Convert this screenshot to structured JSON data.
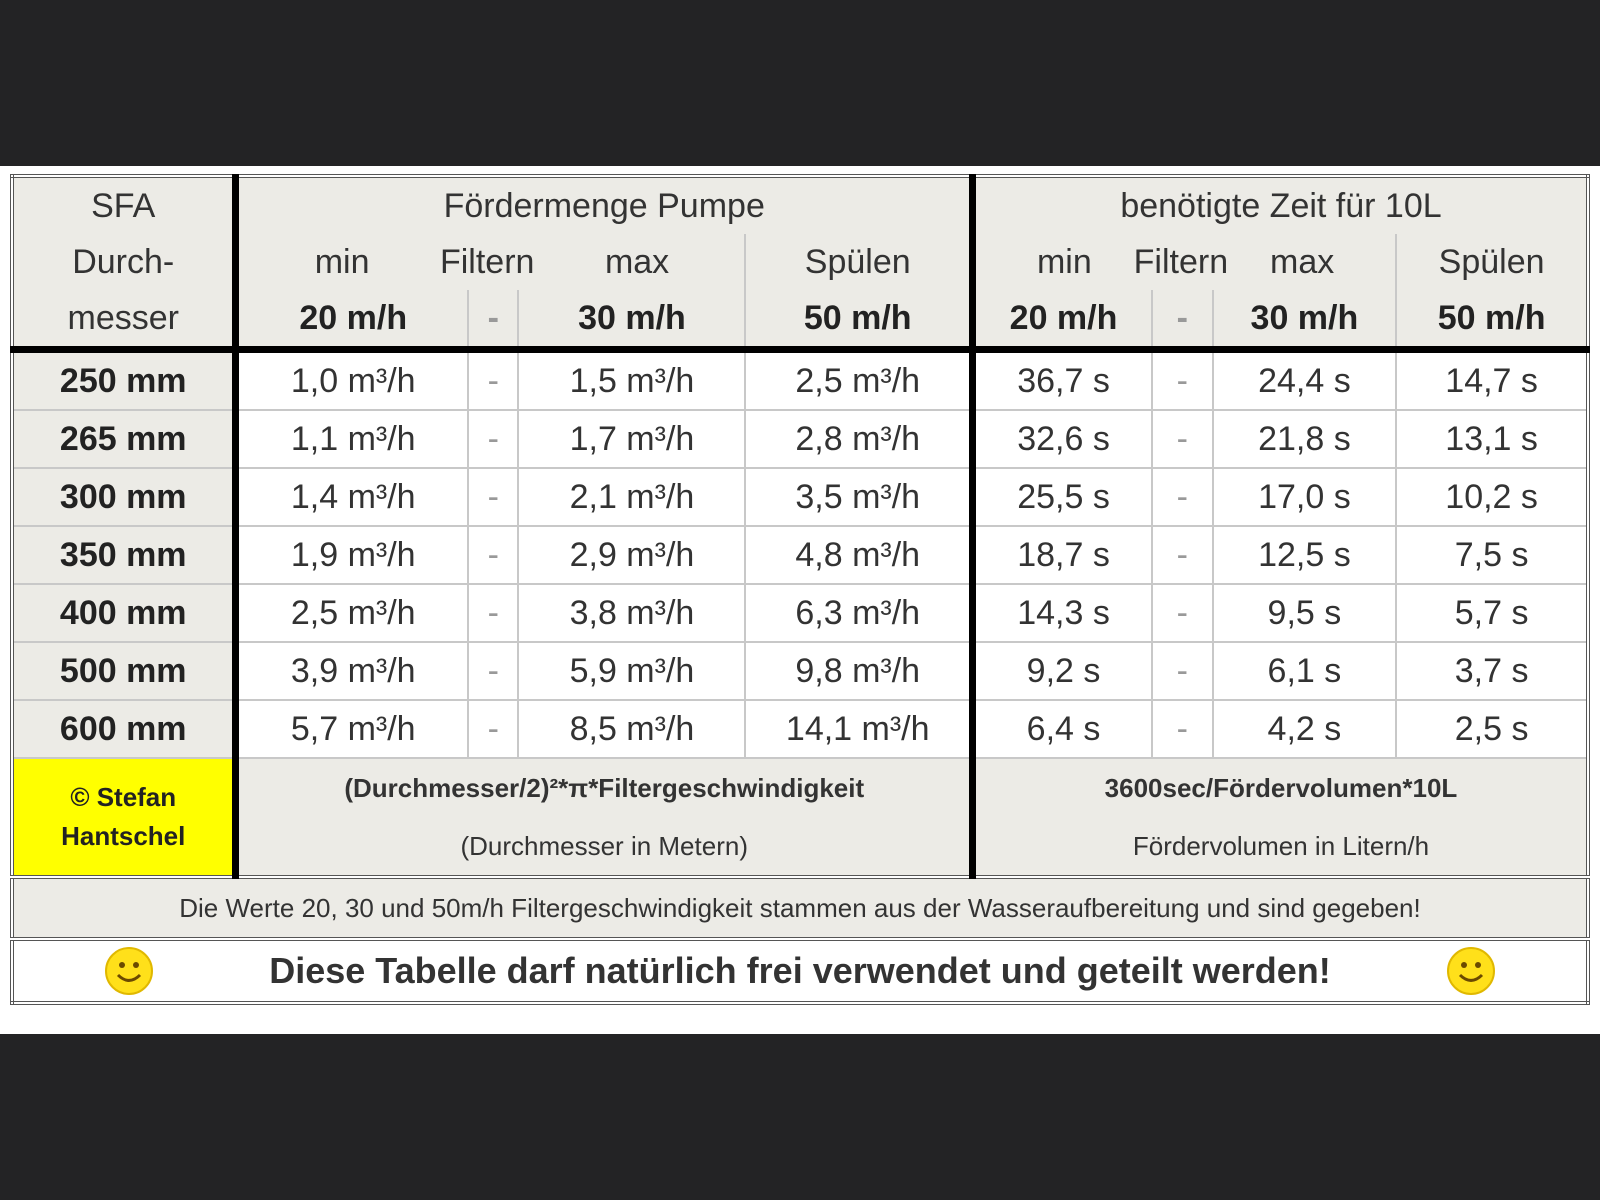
{
  "header": {
    "first_col": [
      "SFA",
      "Durch-",
      "messer"
    ],
    "group_left": "Fördermenge Pumpe",
    "group_right": "benötigte Zeit für 10L",
    "left_sub": [
      "min",
      "Filtern",
      "max"
    ],
    "left_flush": "Spülen",
    "right_sub": [
      "min",
      "Filtern",
      "max"
    ],
    "right_flush": "Spülen",
    "units": [
      "20 m/h",
      "-",
      "30 m/h",
      "50 m/h",
      "20 m/h",
      "-",
      "30 m/h",
      "50 m/h"
    ]
  },
  "table": {
    "rows": [
      [
        "250 mm",
        "1,0 m³/h",
        "-",
        "1,5 m³/h",
        "2,5 m³/h",
        "36,7 s",
        "-",
        "24,4 s",
        "14,7 s"
      ],
      [
        "265 mm",
        "1,1 m³/h",
        "-",
        "1,7 m³/h",
        "2,8 m³/h",
        "32,6 s",
        "-",
        "21,8 s",
        "13,1 s"
      ],
      [
        "300 mm",
        "1,4 m³/h",
        "-",
        "2,1 m³/h",
        "3,5 m³/h",
        "25,5 s",
        "-",
        "17,0 s",
        "10,2 s"
      ],
      [
        "350 mm",
        "1,9 m³/h",
        "-",
        "2,9 m³/h",
        "4,8 m³/h",
        "18,7 s",
        "-",
        "12,5 s",
        "7,5 s"
      ],
      [
        "400 mm",
        "2,5 m³/h",
        "-",
        "3,8 m³/h",
        "6,3 m³/h",
        "14,3 s",
        "-",
        "9,5 s",
        "5,7 s"
      ],
      [
        "500 mm",
        "3,9 m³/h",
        "-",
        "5,9 m³/h",
        "9,8 m³/h",
        "9,2 s",
        "-",
        "6,1 s",
        "3,7 s"
      ],
      [
        "600 mm",
        "5,7 m³/h",
        "-",
        "8,5 m³/h",
        "14,1 m³/h",
        "6,4 s",
        "-",
        "4,2 s",
        "2,5 s"
      ]
    ]
  },
  "footer": {
    "copyright": [
      "© Stefan",
      "Hantschel"
    ],
    "formula_left": "(Durchmesser/2)²*π*Filtergeschwindigkeit",
    "note_left": "(Durchmesser in Metern)",
    "formula_right": "3600sec/Fördervolumen*10L",
    "note_right": "Fördervolumen in Litern/h",
    "remark": "Die Werte 20, 30 und 50m/h Filtergeschwindigkeit stammen aus der Wasseraufbereitung und sind gegeben!",
    "share": "Diese Tabelle darf natürlich frei verwendet und geteilt werden!"
  }
}
